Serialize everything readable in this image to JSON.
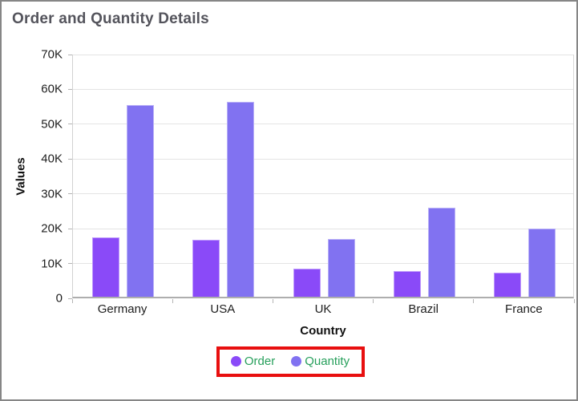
{
  "window": {
    "border_color": "#868686",
    "background": "#ffffff"
  },
  "header": {
    "title": "Order and Quantity Details",
    "title_color": "#54545c"
  },
  "chart_data": {
    "type": "bar",
    "title": "Order and Quantity Details",
    "xlabel": "Country",
    "ylabel": "Values",
    "categories": [
      "Germany",
      "USA",
      "UK",
      "Brazil",
      "France"
    ],
    "series": [
      {
        "name": "Order",
        "color": "#8a4af8",
        "values": [
          17000,
          16300,
          8000,
          7300,
          7000
        ]
      },
      {
        "name": "Quantity",
        "color": "#8172f1",
        "values": [
          55000,
          56000,
          16500,
          25500,
          19500
        ]
      }
    ],
    "ylim": [
      0,
      70000
    ],
    "ytick_step": 10000,
    "ytick_labels_top_to_bottom": [
      "70K",
      "60K",
      "50K",
      "40K",
      "30K",
      "20K",
      "10K",
      "0"
    ],
    "grid": true,
    "gridline_color": "#e4e4e4",
    "axis_line_color": "#aeaeae",
    "tick_label_color": "#1e1e1e",
    "legend_position": "bottom",
    "legend_text_color": "#28a05c"
  },
  "annotation": {
    "type": "highlight-box",
    "target": "legend",
    "color": "#e80f0f"
  }
}
